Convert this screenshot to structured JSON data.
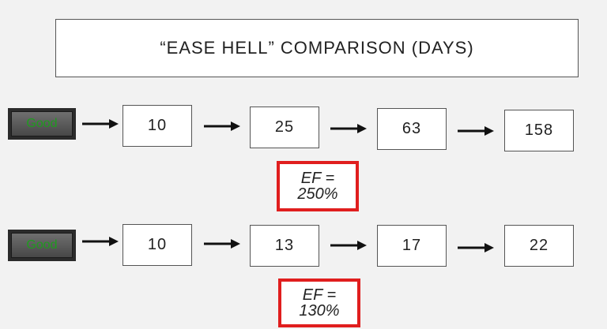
{
  "title": "“EASE HELL” COMPARISON (DAYS)",
  "rows": [
    {
      "button_label": "Good",
      "intervals": [
        "10",
        "25",
        "63",
        "158"
      ],
      "ef_label": "EF =",
      "ef_value": "250%"
    },
    {
      "button_label": "Good",
      "intervals": [
        "10",
        "13",
        "17",
        "22"
      ],
      "ef_label": "EF =",
      "ef_value": "130%"
    }
  ],
  "colors": {
    "good_text": "#1f9b1f",
    "ef_border": "#e01e1e"
  },
  "icons": [
    "right-arrow-icon"
  ]
}
